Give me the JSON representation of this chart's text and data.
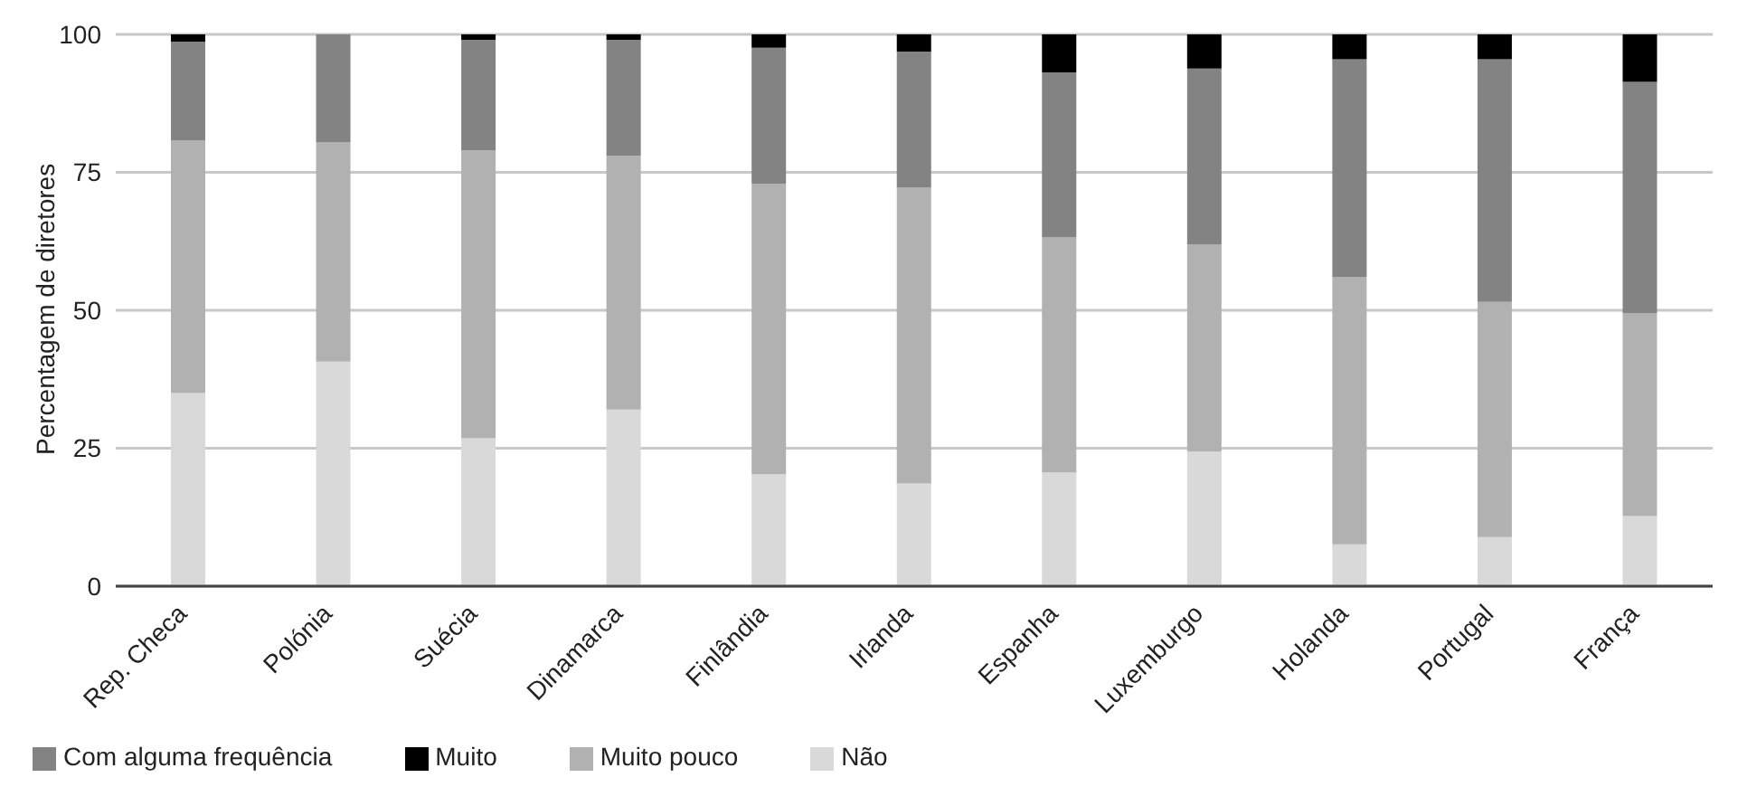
{
  "chart_data": {
    "type": "bar",
    "stacked": true,
    "ylabel": "Percentagem de diretores",
    "categories": [
      "Rep. Checa",
      "Polónia",
      "Suécia",
      "Dinamarca",
      "Finlândia",
      "Irlanda",
      "Espanha",
      "Luxemburgo",
      "Holanda",
      "Portugal",
      "França"
    ],
    "series": [
      {
        "name": "Não",
        "color": "#d9d9d9",
        "values": [
          35.0,
          40.7,
          26.8,
          32.0,
          20.3,
          18.6,
          20.6,
          24.4,
          7.6,
          8.9,
          12.7
        ]
      },
      {
        "name": "Muito pouco",
        "color": "#b0b1b0",
        "values": [
          45.8,
          39.7,
          52.2,
          46.0,
          52.6,
          53.6,
          42.6,
          37.5,
          48.4,
          42.6,
          36.8
        ]
      },
      {
        "name": "Com alguma frequência",
        "color": "#838383",
        "values": [
          17.9,
          19.6,
          20.0,
          21.0,
          24.7,
          24.7,
          29.9,
          31.9,
          39.5,
          44.0,
          41.9
        ]
      },
      {
        "name": "Muito",
        "color": "#000000",
        "values": [
          1.3,
          0,
          1.0,
          1.0,
          2.4,
          3.1,
          6.9,
          6.2,
          4.5,
          4.5,
          8.6
        ]
      }
    ],
    "ylim": [
      0,
      100
    ],
    "yticks": [
      0,
      25,
      50,
      75,
      100
    ],
    "grid": "y",
    "legend": "bottom left"
  }
}
